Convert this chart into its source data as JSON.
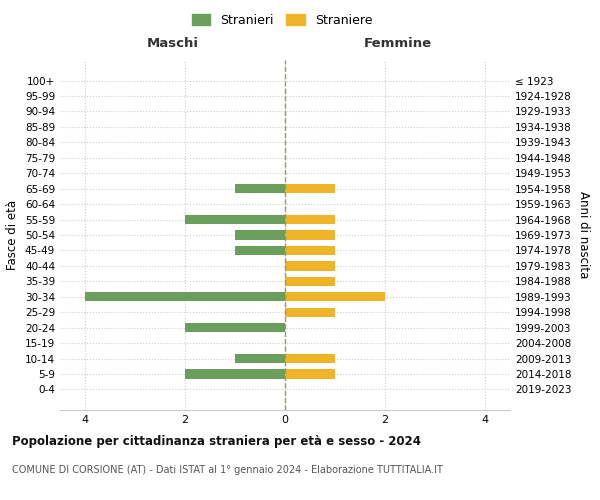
{
  "age_groups": [
    "0-4",
    "5-9",
    "10-14",
    "15-19",
    "20-24",
    "25-29",
    "30-34",
    "35-39",
    "40-44",
    "45-49",
    "50-54",
    "55-59",
    "60-64",
    "65-69",
    "70-74",
    "75-79",
    "80-84",
    "85-89",
    "90-94",
    "95-99",
    "100+"
  ],
  "birth_years": [
    "2019-2023",
    "2014-2018",
    "2009-2013",
    "2004-2008",
    "1999-2003",
    "1994-1998",
    "1989-1993",
    "1984-1988",
    "1979-1983",
    "1974-1978",
    "1969-1973",
    "1964-1968",
    "1959-1963",
    "1954-1958",
    "1949-1953",
    "1944-1948",
    "1939-1943",
    "1934-1938",
    "1929-1933",
    "1924-1928",
    "≤ 1923"
  ],
  "maschi": [
    0,
    2,
    1,
    0,
    2,
    0,
    4,
    0,
    0,
    1,
    1,
    2,
    0,
    1,
    0,
    0,
    0,
    0,
    0,
    0,
    0
  ],
  "femmine": [
    0,
    1,
    1,
    0,
    0,
    1,
    2,
    1,
    1,
    1,
    1,
    1,
    0,
    1,
    0,
    0,
    0,
    0,
    0,
    0,
    0
  ],
  "color_maschi": "#6a9e5c",
  "color_femmine": "#f0b429",
  "xlim": [
    -4.5,
    4.5
  ],
  "xticks": [
    -4,
    -2,
    0,
    2,
    4
  ],
  "xticklabels": [
    "4",
    "2",
    "0",
    "2",
    "4"
  ],
  "title": "Popolazione per cittadinanza straniera per età e sesso - 2024",
  "subtitle": "COMUNE DI CORSIONE (AT) - Dati ISTAT al 1° gennaio 2024 - Elaborazione TUTTITALIA.IT",
  "legend_maschi": "Stranieri",
  "legend_femmine": "Straniere",
  "ylabel_left": "Fasce di età",
  "ylabel_right": "Anni di nascita",
  "label_maschi": "Maschi",
  "label_femmine": "Femmine",
  "bg_color": "#ffffff",
  "grid_color": "#cccccc"
}
